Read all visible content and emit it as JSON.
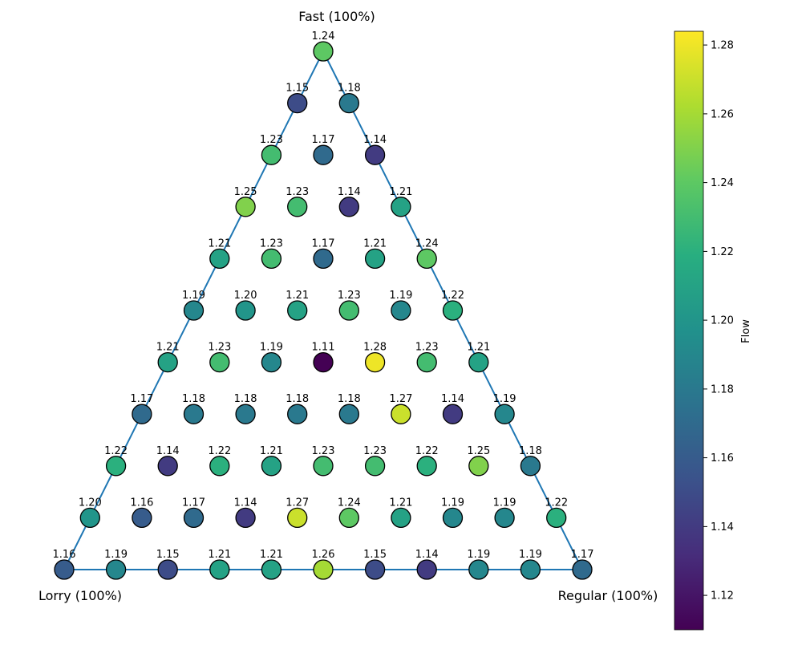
{
  "chart_data": {
    "type": "scatter",
    "subtype": "ternary",
    "vertex_labels": {
      "top": "Fast (100%)",
      "bottom_left": "Lorry (100%)",
      "bottom_right": "Regular (100%)"
    },
    "colorbar": {
      "label": "Flow",
      "colormap": "viridis",
      "range": [
        1.11,
        1.284
      ],
      "ticks": [
        "1.12",
        "1.14",
        "1.16",
        "1.18",
        "1.20",
        "1.22",
        "1.24",
        "1.26",
        "1.28"
      ]
    },
    "grid_divisions": 10,
    "rows": [
      {
        "fast": 1.0,
        "values": [
          1.24
        ]
      },
      {
        "fast": 0.9,
        "values": [
          1.15,
          1.18
        ]
      },
      {
        "fast": 0.8,
        "values": [
          1.23,
          1.17,
          1.14
        ]
      },
      {
        "fast": 0.7,
        "values": [
          1.25,
          1.23,
          1.14,
          1.21
        ]
      },
      {
        "fast": 0.6,
        "values": [
          1.21,
          1.23,
          1.17,
          1.21,
          1.24
        ]
      },
      {
        "fast": 0.5,
        "values": [
          1.19,
          1.2,
          1.21,
          1.23,
          1.19,
          1.22
        ]
      },
      {
        "fast": 0.4,
        "values": [
          1.21,
          1.23,
          1.19,
          1.11,
          1.28,
          1.23,
          1.21
        ]
      },
      {
        "fast": 0.3,
        "values": [
          1.17,
          1.18,
          1.18,
          1.18,
          1.18,
          1.27,
          1.14,
          1.19
        ]
      },
      {
        "fast": 0.2,
        "values": [
          1.22,
          1.14,
          1.22,
          1.21,
          1.23,
          1.23,
          1.22,
          1.25,
          1.18
        ]
      },
      {
        "fast": 0.1,
        "values": [
          1.2,
          1.16,
          1.17,
          1.14,
          1.27,
          1.24,
          1.21,
          1.19,
          1.19,
          1.22
        ]
      },
      {
        "fast": 0.0,
        "values": [
          1.16,
          1.19,
          1.15,
          1.21,
          1.21,
          1.26,
          1.15,
          1.14,
          1.19,
          1.19,
          1.17
        ]
      }
    ],
    "row_order_note": "within each row values go from Lorry side (left) to Regular side (right)",
    "colors": {
      "edge": "#1f77b4",
      "marker_outline": "#000000"
    }
  }
}
